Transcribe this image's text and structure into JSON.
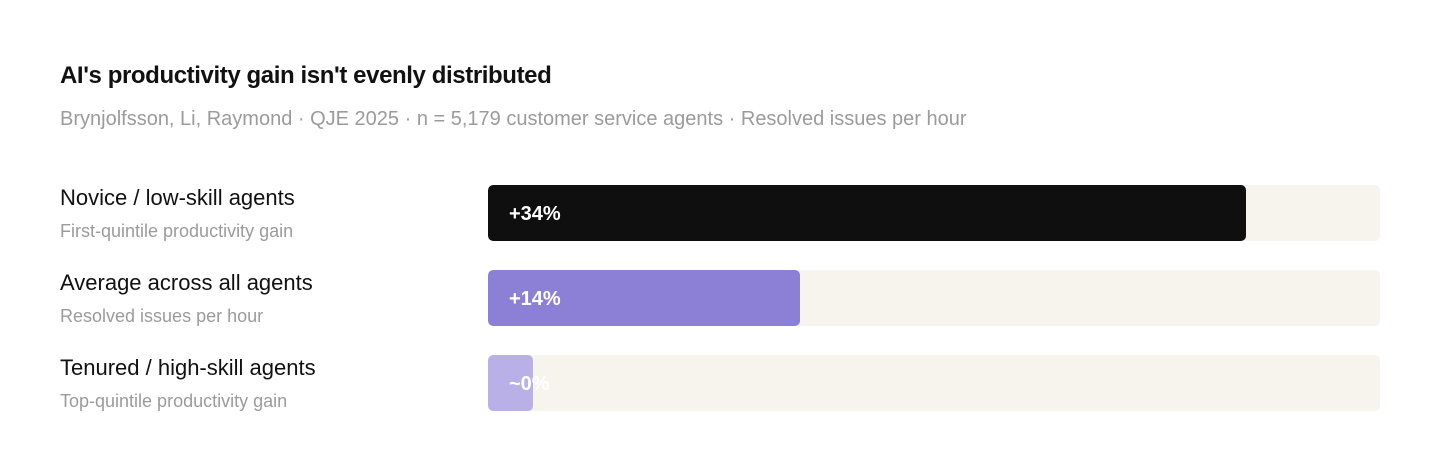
{
  "chart_data": {
    "type": "bar",
    "orientation": "horizontal",
    "title": "AI's productivity gain isn't evenly distributed",
    "subtitle": "Brynjolfsson, Li, Raymond · QJE 2025 · n = 5,179 customer service agents · Resolved issues per hour",
    "xlim": [
      0,
      40
    ],
    "grid": false,
    "legend": "none",
    "categories": [
      "Novice / low-skill agents",
      "Average across all agents",
      "Tenured / high-skill agents"
    ],
    "category_notes": [
      "First-quintile productivity gain",
      "Resolved issues per hour",
      "Top-quintile productivity gain"
    ],
    "values": [
      34,
      14,
      2
    ],
    "value_labels": [
      "+34%",
      "+14%",
      "~0%"
    ],
    "colors": [
      "#0e0f0e",
      "#8c80d6",
      "#b9b0e8"
    ],
    "track_color": "#f7f4ee"
  }
}
